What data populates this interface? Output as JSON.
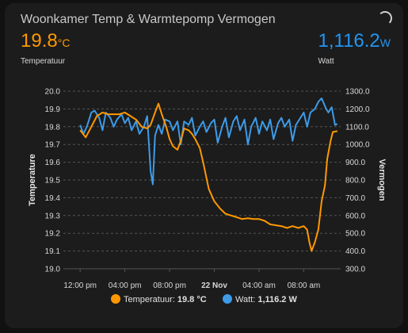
{
  "card": {
    "title": "Woonkamer Temp & Warmtepomp Vermogen",
    "primary": {
      "value": "19.8",
      "unit": "°C",
      "label": "Temperatuur",
      "color": "#ff9800"
    },
    "secondary": {
      "value": "1,116.2",
      "unit": "W",
      "label": "Watt",
      "color": "#2196f3"
    }
  },
  "colors": {
    "temperature": "#ff9800",
    "power": "#3d9be8",
    "grid": "#555555",
    "background": "#1c1c1c"
  },
  "icons": {
    "loading": "spinner-icon"
  },
  "chart_data": {
    "type": "line",
    "x_tick_labels": [
      "12:00 pm",
      "04:00 pm",
      "08:00 pm",
      "22 Nov",
      "04:00 am",
      "08:00 am"
    ],
    "x_tick_hours": [
      0,
      4,
      8,
      12,
      16,
      20
    ],
    "x_range_hours": [
      -1.5,
      23.3
    ],
    "ylabel_left": "Temperature",
    "ylabel_right": "Vermogen",
    "ylim_left": [
      19.0,
      20.0
    ],
    "ylim_right": [
      300,
      1300
    ],
    "yticks_left": [
      "20.0",
      "19.9",
      "19.8",
      "19.7",
      "19.6",
      "19.5",
      "19.4",
      "19.3",
      "19.2",
      "19.1",
      "19.0"
    ],
    "yticks_right": [
      "1300.0",
      "1200.0",
      "1100.0",
      "1000.0",
      "900.0",
      "800.0",
      "700.0",
      "600.0",
      "500.0",
      "400.0",
      "300.0"
    ],
    "grid": true,
    "legend_position": "bottom",
    "legend": [
      {
        "label": "Temperatuur:",
        "value": "19.8 °C"
      },
      {
        "label": "Watt:",
        "value": "1,116.2 W"
      }
    ],
    "series": [
      {
        "name": "Temperatuur",
        "axis": "left",
        "points": [
          [
            0.0,
            19.78
          ],
          [
            0.5,
            19.74
          ],
          [
            1.0,
            19.8
          ],
          [
            1.5,
            19.86
          ],
          [
            2.0,
            19.88
          ],
          [
            2.5,
            19.87
          ],
          [
            3.0,
            19.87
          ],
          [
            3.5,
            19.87
          ],
          [
            4.0,
            19.88
          ],
          [
            4.5,
            19.86
          ],
          [
            5.0,
            19.84
          ],
          [
            5.5,
            19.8
          ],
          [
            6.0,
            19.79
          ],
          [
            6.3,
            19.81
          ],
          [
            6.7,
            19.88
          ],
          [
            7.0,
            19.93
          ],
          [
            7.3,
            19.87
          ],
          [
            7.7,
            19.8
          ],
          [
            8.0,
            19.73
          ],
          [
            8.3,
            19.69
          ],
          [
            8.7,
            19.67
          ],
          [
            9.0,
            19.72
          ],
          [
            9.3,
            19.79
          ],
          [
            9.7,
            19.78
          ],
          [
            10.0,
            19.76
          ],
          [
            10.3,
            19.73
          ],
          [
            10.7,
            19.68
          ],
          [
            11.0,
            19.6
          ],
          [
            11.5,
            19.45
          ],
          [
            12.0,
            19.38
          ],
          [
            12.5,
            19.34
          ],
          [
            13.0,
            19.31
          ],
          [
            13.5,
            19.3
          ],
          [
            14.0,
            19.29
          ],
          [
            14.5,
            19.28
          ],
          [
            15.0,
            19.285
          ],
          [
            15.5,
            19.28
          ],
          [
            16.0,
            19.28
          ],
          [
            16.5,
            19.27
          ],
          [
            17.0,
            19.25
          ],
          [
            17.5,
            19.245
          ],
          [
            18.0,
            19.24
          ],
          [
            18.5,
            19.23
          ],
          [
            19.0,
            19.24
          ],
          [
            19.5,
            19.23
          ],
          [
            20.0,
            19.24
          ],
          [
            20.3,
            19.22
          ],
          [
            20.5,
            19.15
          ],
          [
            20.7,
            19.1
          ],
          [
            21.0,
            19.15
          ],
          [
            21.3,
            19.22
          ],
          [
            21.6,
            19.38
          ],
          [
            21.9,
            19.47
          ],
          [
            22.1,
            19.62
          ],
          [
            22.4,
            19.72
          ],
          [
            22.6,
            19.77
          ],
          [
            23.0,
            19.775
          ]
        ]
      },
      {
        "name": "Watt",
        "axis": "right",
        "points": [
          [
            0.0,
            1110
          ],
          [
            0.3,
            1060
          ],
          [
            0.6,
            1100
          ],
          [
            1.0,
            1180
          ],
          [
            1.3,
            1190
          ],
          [
            1.7,
            1150
          ],
          [
            2.0,
            1080
          ],
          [
            2.3,
            1180
          ],
          [
            2.7,
            1150
          ],
          [
            3.0,
            1100
          ],
          [
            3.3,
            1140
          ],
          [
            3.7,
            1170
          ],
          [
            4.0,
            1120
          ],
          [
            4.3,
            1150
          ],
          [
            4.6,
            1080
          ],
          [
            5.0,
            1130
          ],
          [
            5.3,
            1060
          ],
          [
            5.7,
            1100
          ],
          [
            6.0,
            1160
          ],
          [
            6.3,
            850
          ],
          [
            6.5,
            775
          ],
          [
            6.7,
            1050
          ],
          [
            7.0,
            1110
          ],
          [
            7.3,
            1060
          ],
          [
            7.6,
            1140
          ],
          [
            8.0,
            1130
          ],
          [
            8.3,
            1080
          ],
          [
            8.7,
            1130
          ],
          [
            9.0,
            1000
          ],
          [
            9.3,
            1130
          ],
          [
            9.7,
            1110
          ],
          [
            10.0,
            1150
          ],
          [
            10.3,
            1050
          ],
          [
            10.7,
            1100
          ],
          [
            11.0,
            1130
          ],
          [
            11.3,
            1070
          ],
          [
            11.7,
            1120
          ],
          [
            12.0,
            1140
          ],
          [
            12.3,
            1010
          ],
          [
            12.7,
            1100
          ],
          [
            13.0,
            1150
          ],
          [
            13.3,
            1040
          ],
          [
            13.7,
            1130
          ],
          [
            14.0,
            1160
          ],
          [
            14.3,
            1080
          ],
          [
            14.7,
            1140
          ],
          [
            15.0,
            1000
          ],
          [
            15.3,
            1100
          ],
          [
            15.7,
            1150
          ],
          [
            16.0,
            1060
          ],
          [
            16.3,
            1130
          ],
          [
            16.7,
            1080
          ],
          [
            17.0,
            1140
          ],
          [
            17.3,
            1030
          ],
          [
            17.7,
            1120
          ],
          [
            18.0,
            1150
          ],
          [
            18.3,
            1100
          ],
          [
            18.7,
            1140
          ],
          [
            19.0,
            1020
          ],
          [
            19.3,
            1110
          ],
          [
            19.7,
            1150
          ],
          [
            20.0,
            1180
          ],
          [
            20.3,
            1100
          ],
          [
            20.6,
            1180
          ],
          [
            21.0,
            1200
          ],
          [
            21.3,
            1240
          ],
          [
            21.6,
            1260
          ],
          [
            22.0,
            1200
          ],
          [
            22.2,
            1180
          ],
          [
            22.5,
            1210
          ],
          [
            22.8,
            1110
          ],
          [
            23.0,
            1116
          ]
        ]
      }
    ]
  }
}
